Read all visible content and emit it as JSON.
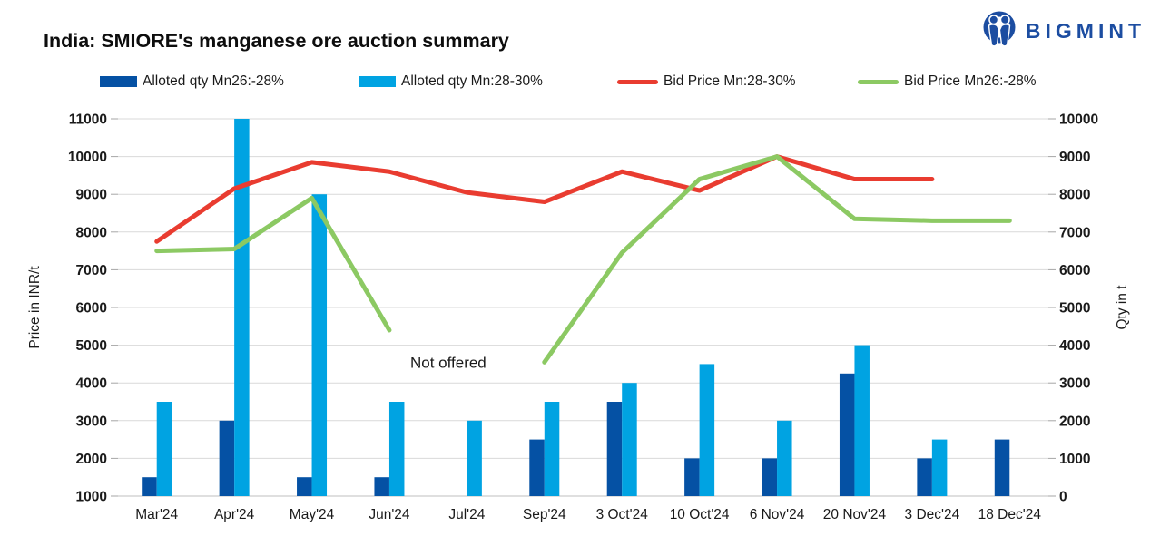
{
  "header": {
    "title": "India: SMIORE's manganese ore auction summary",
    "logo": {
      "text": "BIGMINT",
      "color": "#1C4DA1",
      "icon": "two-people-in-circle"
    }
  },
  "legend": {
    "items": [
      {
        "label": "Alloted qty Mn26:-28%",
        "swatch": "bar",
        "color": "#0551A4"
      },
      {
        "label": "Alloted qty Mn:28-30%",
        "swatch": "bar",
        "color": "#00A3E2"
      },
      {
        "label": "Bid Price Mn:28-30%",
        "swatch": "line",
        "color": "#E93C30"
      },
      {
        "label": "Bid Price Mn26:-28%",
        "swatch": "line",
        "color": "#8CC963"
      }
    ]
  },
  "chart_data": {
    "type": "combo-bar-line",
    "categories": [
      "Mar'24",
      "Apr'24",
      "May'24",
      "Jun'24",
      "Jul'24",
      "Sep'24",
      "3 Oct'24",
      "10 Oct'24",
      "6 Nov'24",
      "20 Nov'24",
      "3 Dec'24",
      "18 Dec'24"
    ],
    "bar_series": [
      {
        "name": "Alloted qty Mn26:-28%",
        "axis": "right",
        "color": "#0551A4",
        "values": [
          500,
          2000,
          500,
          500,
          null,
          1500,
          2500,
          1000,
          1000,
          3250,
          1000,
          1500
        ]
      },
      {
        "name": "Alloted qty Mn:28-30%",
        "axis": "right",
        "color": "#00A3E2",
        "values": [
          2500,
          10000,
          8000,
          2500,
          2000,
          2500,
          3000,
          3500,
          2000,
          4000,
          1500,
          null
        ]
      }
    ],
    "line_series": [
      {
        "name": "Bid Price Mn:28-30%",
        "axis": "left",
        "color": "#E93C30",
        "values": [
          7750,
          9150,
          9850,
          9600,
          9050,
          8800,
          9600,
          9100,
          10000,
          9400,
          9400,
          null
        ]
      },
      {
        "name": "Bid Price Mn26:-28%",
        "axis": "left",
        "color": "#8CC963",
        "values": [
          7500,
          7550,
          8900,
          5400,
          null,
          4550,
          7450,
          9400,
          10000,
          8350,
          8300,
          8300
        ]
      }
    ],
    "left_axis": {
      "title": "Price in INR/t",
      "min": 1000,
      "max": 11000,
      "step": 1000
    },
    "right_axis": {
      "title": "Qty in t",
      "min": 0,
      "max": 10000,
      "step": 1000
    },
    "annotation": {
      "text": "Not offered",
      "x_fraction": 0.355,
      "price_level": 4550
    },
    "grid": true,
    "legend_position": "top",
    "colors": {
      "grid": "#D9D9D9",
      "axis_line": "#BFBFBF",
      "tick": "#A6A6A6",
      "text": "#1A1A1A"
    }
  }
}
